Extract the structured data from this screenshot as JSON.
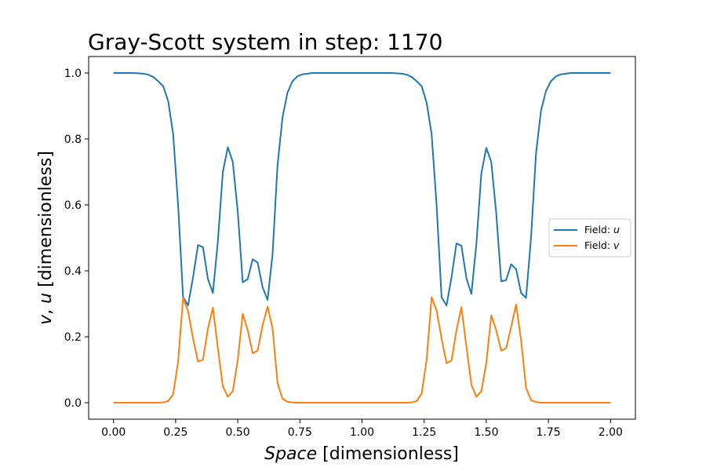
{
  "chart_data": {
    "type": "line",
    "title": "Gray-Scott system in step: 1170",
    "xlabel": {
      "italic": "Space",
      "rest": " [dimensionless]"
    },
    "ylabel": {
      "var1": "v",
      "sep": ", ",
      "var2": "u",
      "rest": " [dimensionless]"
    },
    "xlim": [
      -0.1,
      2.1
    ],
    "ylim": [
      -0.05,
      1.05
    ],
    "xticks": [
      "0.00",
      "0.25",
      "0.50",
      "0.75",
      "1.00",
      "1.25",
      "1.50",
      "1.75",
      "2.00"
    ],
    "yticks": [
      "0.0",
      "0.2",
      "0.4",
      "0.6",
      "0.8",
      "1.0"
    ],
    "grid": false,
    "legend_placement": "center-right",
    "x": [
      0.0,
      0.02,
      0.04,
      0.06,
      0.08,
      0.1,
      0.12,
      0.14,
      0.16,
      0.18,
      0.2,
      0.22,
      0.24,
      0.26,
      0.28,
      0.3,
      0.32,
      0.34,
      0.36,
      0.38,
      0.4,
      0.42,
      0.44,
      0.46,
      0.48,
      0.5,
      0.52,
      0.54,
      0.56,
      0.58,
      0.6,
      0.62,
      0.64,
      0.66,
      0.68,
      0.7,
      0.72,
      0.74,
      0.76,
      0.78,
      0.8,
      0.82,
      0.84,
      0.86,
      0.88,
      0.9,
      0.92,
      0.94,
      0.96,
      0.98,
      1.0,
      1.02,
      1.04,
      1.06,
      1.08,
      1.1,
      1.12,
      1.14,
      1.16,
      1.18,
      1.2,
      1.22,
      1.24,
      1.26,
      1.28,
      1.3,
      1.32,
      1.34,
      1.36,
      1.38,
      1.4,
      1.42,
      1.44,
      1.46,
      1.48,
      1.5,
      1.52,
      1.54,
      1.56,
      1.58,
      1.6,
      1.62,
      1.64,
      1.66,
      1.68,
      1.7,
      1.72,
      1.74,
      1.76,
      1.78,
      1.8,
      1.82,
      1.84,
      1.86,
      1.88,
      1.9,
      1.92,
      1.94,
      1.96,
      1.98,
      2.0
    ],
    "series": [
      {
        "name": "Field: u",
        "var": "u",
        "color": "#1f77b4",
        "values": [
          1.0,
          1.0,
          1.0,
          1.0,
          1.0,
          0.999,
          0.998,
          0.995,
          0.988,
          0.975,
          0.96,
          0.915,
          0.815,
          0.6,
          0.32,
          0.295,
          0.38,
          0.478,
          0.472,
          0.375,
          0.333,
          0.49,
          0.7,
          0.775,
          0.73,
          0.58,
          0.365,
          0.375,
          0.435,
          0.425,
          0.35,
          0.312,
          0.45,
          0.72,
          0.865,
          0.94,
          0.975,
          0.99,
          0.996,
          0.998,
          1.0,
          1.0,
          1.0,
          1.0,
          1.0,
          1.0,
          1.0,
          1.0,
          1.0,
          1.0,
          1.0,
          1.0,
          1.0,
          1.0,
          1.0,
          1.0,
          1.0,
          0.999,
          0.998,
          0.995,
          0.988,
          0.975,
          0.96,
          0.91,
          0.815,
          0.6,
          0.32,
          0.295,
          0.38,
          0.483,
          0.476,
          0.378,
          0.33,
          0.48,
          0.695,
          0.773,
          0.73,
          0.575,
          0.368,
          0.372,
          0.42,
          0.405,
          0.333,
          0.318,
          0.5,
          0.755,
          0.885,
          0.945,
          0.975,
          0.99,
          0.996,
          0.998,
          1.0,
          1.0,
          1.0,
          1.0,
          1.0,
          1.0,
          1.0,
          1.0,
          1.0
        ]
      },
      {
        "name": "Field: v",
        "var": "v",
        "color": "#ff7f0e",
        "values": [
          0.0,
          0.0,
          0.0,
          0.0,
          0.0,
          0.0,
          0.0,
          0.0,
          0.0,
          0.0,
          0.001,
          0.005,
          0.025,
          0.125,
          0.318,
          0.278,
          0.195,
          0.125,
          0.13,
          0.225,
          0.288,
          0.165,
          0.05,
          0.018,
          0.035,
          0.13,
          0.27,
          0.22,
          0.15,
          0.158,
          0.235,
          0.292,
          0.225,
          0.06,
          0.012,
          0.003,
          0.001,
          0.0,
          0.0,
          0.0,
          0.0,
          0.0,
          0.0,
          0.0,
          0.0,
          0.0,
          0.0,
          0.0,
          0.0,
          0.0,
          0.0,
          0.0,
          0.0,
          0.0,
          0.0,
          0.0,
          0.0,
          0.0,
          0.0,
          0.0,
          0.001,
          0.005,
          0.028,
          0.13,
          0.32,
          0.28,
          0.195,
          0.12,
          0.128,
          0.22,
          0.29,
          0.17,
          0.055,
          0.018,
          0.035,
          0.12,
          0.265,
          0.22,
          0.158,
          0.165,
          0.23,
          0.298,
          0.19,
          0.045,
          0.008,
          0.002,
          0.0,
          0.0,
          0.0,
          0.0,
          0.0,
          0.0,
          0.0,
          0.0,
          0.0,
          0.0,
          0.0,
          0.0,
          0.0,
          0.0,
          0.0
        ]
      }
    ]
  }
}
